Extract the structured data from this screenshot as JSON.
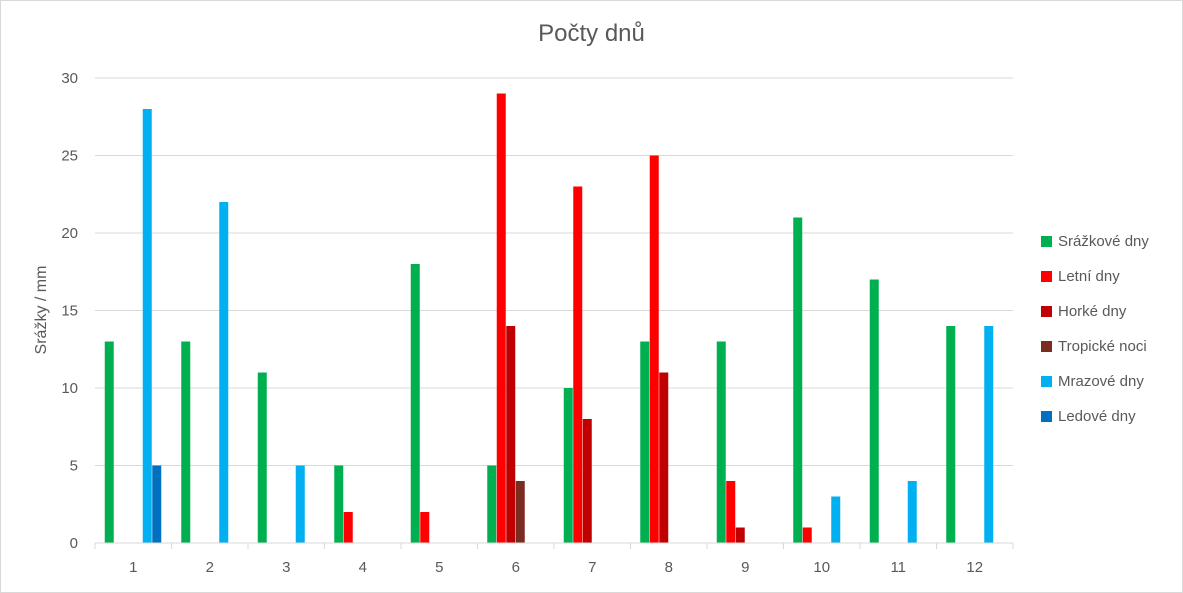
{
  "chart_data": {
    "type": "bar",
    "title": "Počty dnů",
    "xlabel": "",
    "ylabel": "Srážky / mm",
    "ylim": [
      0,
      30
    ],
    "yticks": [
      "0",
      "5",
      "10",
      "15",
      "20",
      "25",
      "30"
    ],
    "grid": true,
    "legend_position": "right",
    "categories": [
      "1",
      "2",
      "3",
      "4",
      "5",
      "6",
      "7",
      "8",
      "9",
      "10",
      "11",
      "12"
    ],
    "series": [
      {
        "name": "Srážkové dny",
        "color": "#00b050",
        "values": [
          13,
          13,
          11,
          5,
          18,
          5,
          10,
          13,
          13,
          21,
          17,
          14
        ]
      },
      {
        "name": "Letní dny",
        "color": "#ff0000",
        "values": [
          0,
          0,
          0,
          2,
          2,
          29,
          23,
          25,
          4,
          1,
          0,
          0
        ]
      },
      {
        "name": "Horké dny",
        "color": "#c00000",
        "values": [
          0,
          0,
          0,
          0,
          0,
          14,
          8,
          11,
          1,
          0,
          0,
          0
        ]
      },
      {
        "name": "Tropické noci",
        "color": "#7b2c20",
        "values": [
          0,
          0,
          0,
          0,
          0,
          4,
          0,
          0,
          0,
          0,
          0,
          0
        ]
      },
      {
        "name": "Mrazové dny",
        "color": "#00b0f0",
        "values": [
          28,
          22,
          5,
          0,
          0,
          0,
          0,
          0,
          0,
          3,
          4,
          14
        ]
      },
      {
        "name": "Ledové dny",
        "color": "#0070c0",
        "values": [
          5,
          0,
          0,
          0,
          0,
          0,
          0,
          0,
          0,
          0,
          0,
          0
        ]
      }
    ]
  }
}
